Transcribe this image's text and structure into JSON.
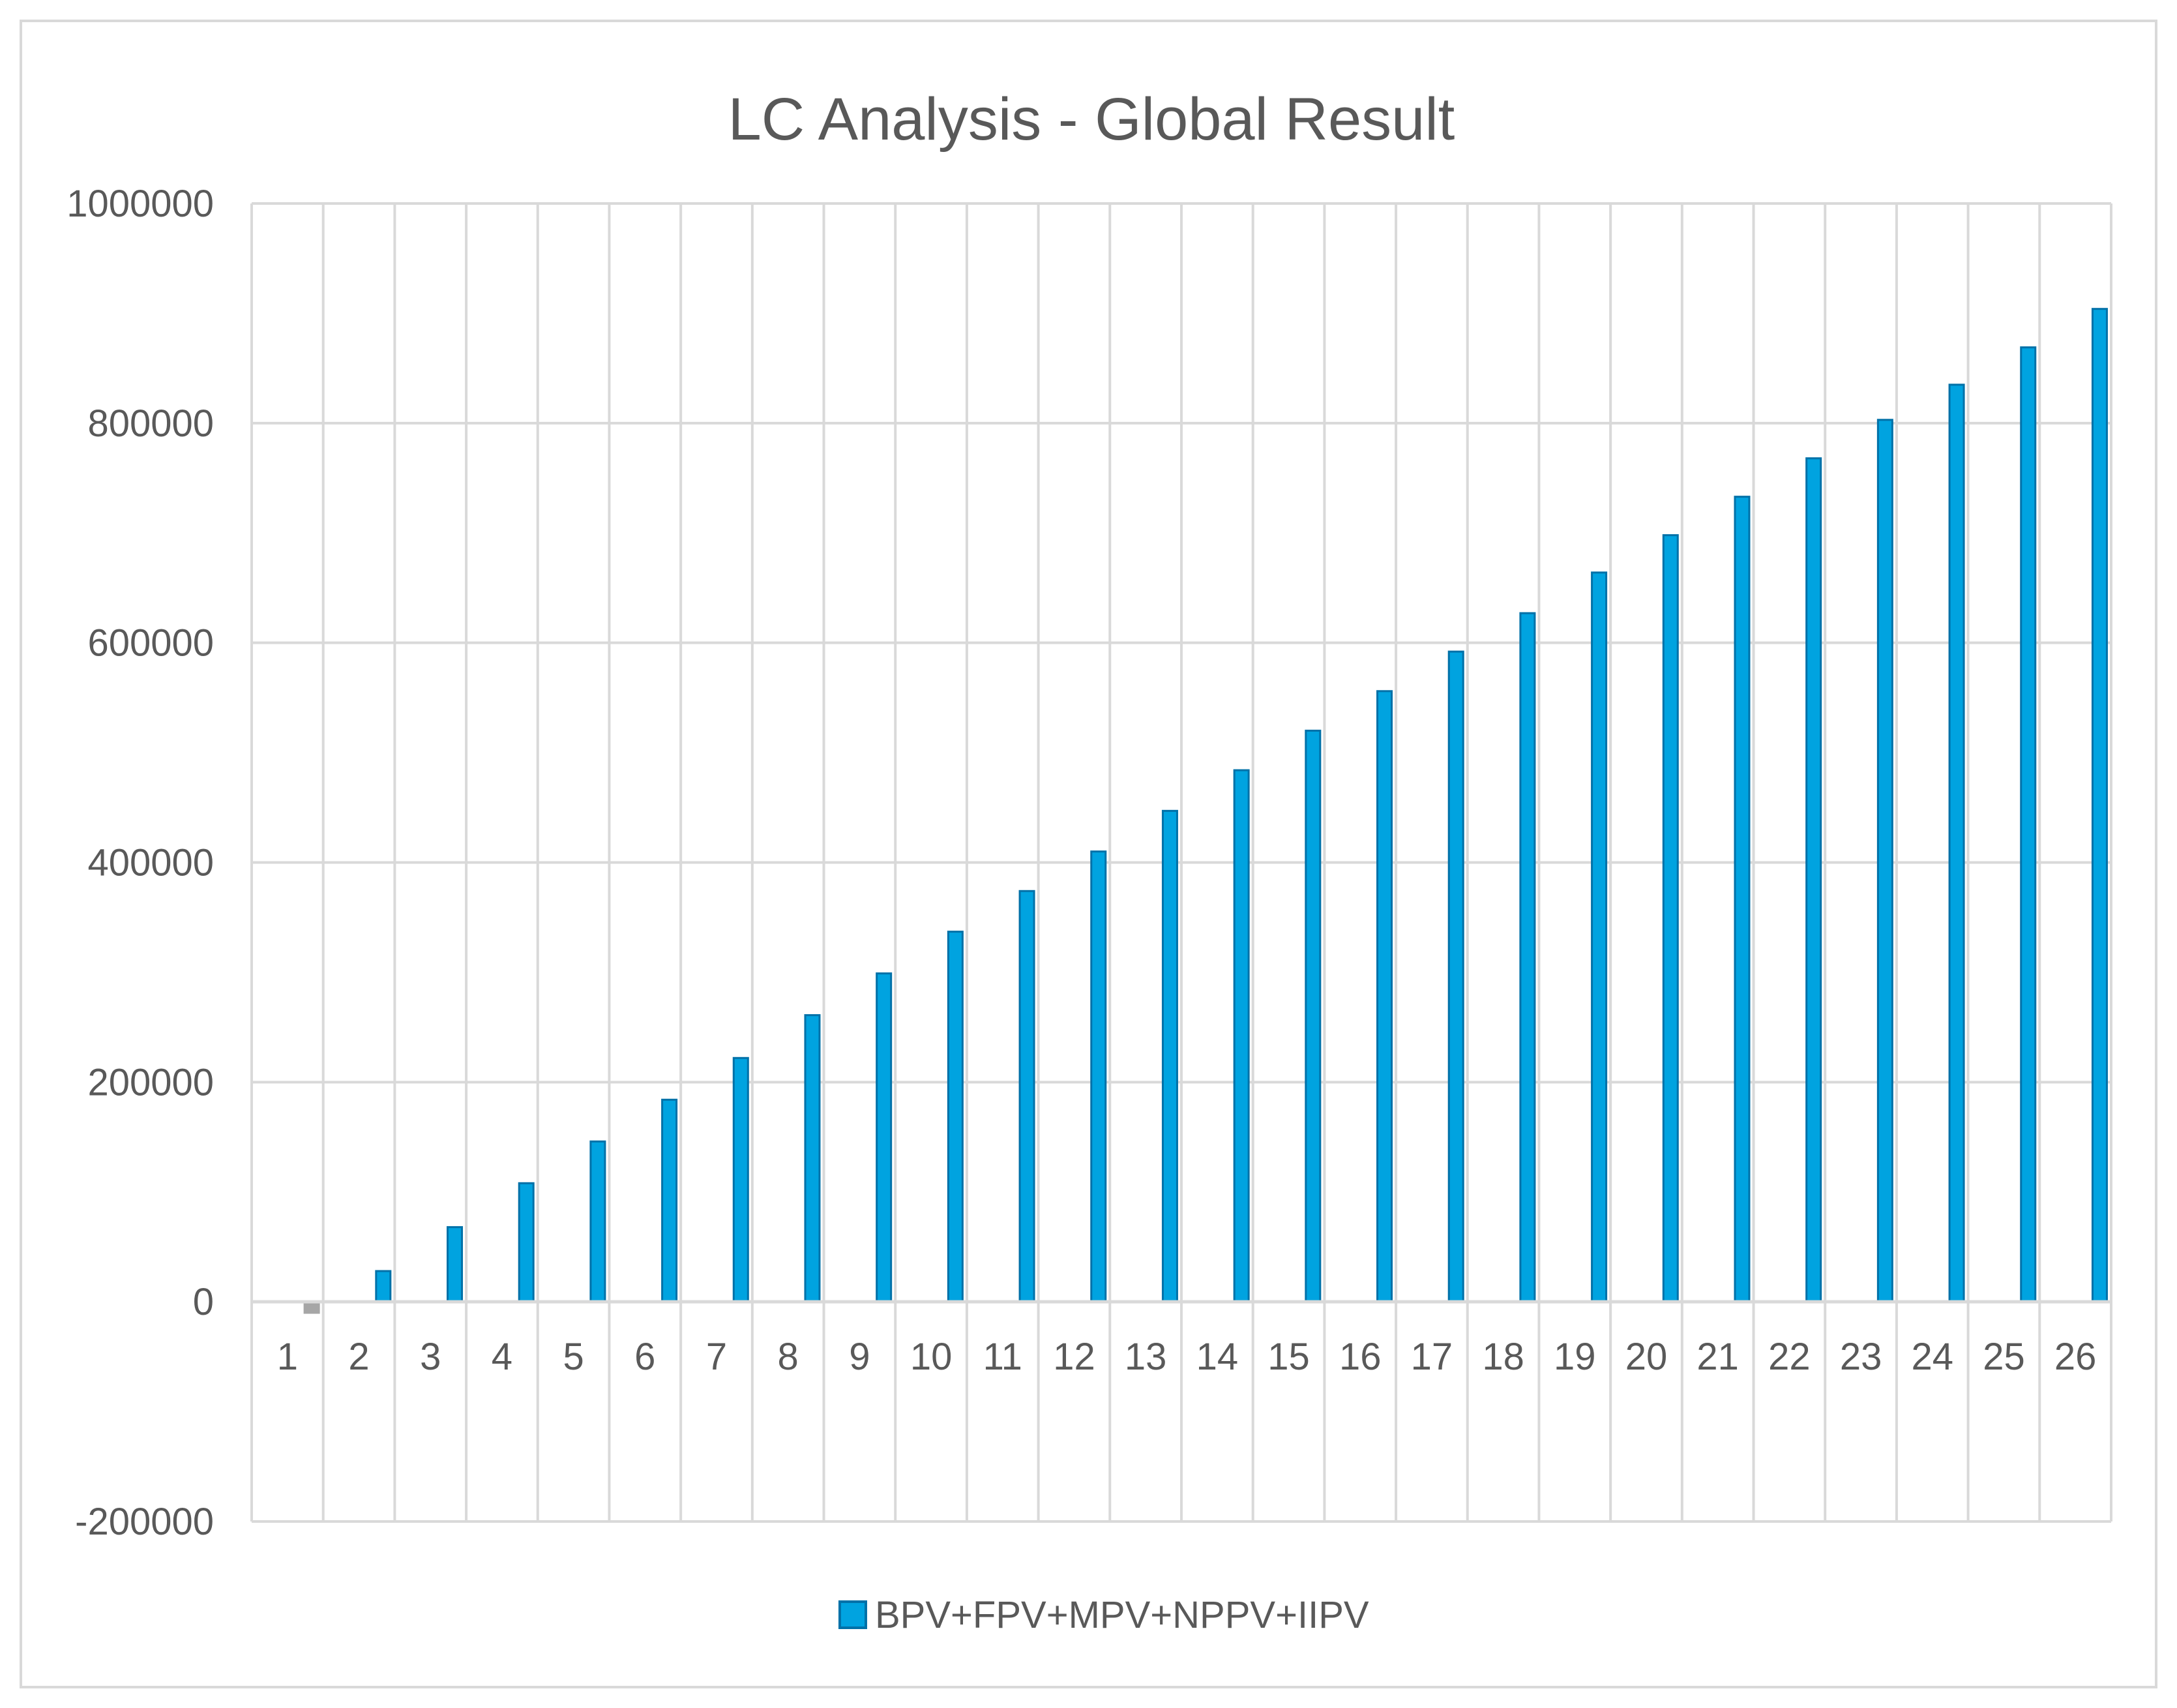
{
  "chart_data": {
    "type": "bar",
    "title": "LC Analysis - Global Result",
    "xlabel": "",
    "ylabel": "",
    "categories": [
      "1",
      "2",
      "3",
      "4",
      "5",
      "6",
      "7",
      "8",
      "9",
      "10",
      "11",
      "12",
      "13",
      "14",
      "15",
      "16",
      "17",
      "18",
      "19",
      "20",
      "21",
      "22",
      "23",
      "24",
      "25",
      "26"
    ],
    "series": [
      {
        "name": "BPV+FPV+MPV+NPPV+IIPV",
        "values": [
          -10000,
          28000,
          68000,
          108000,
          146000,
          184000,
          222000,
          261000,
          299000,
          337000,
          374000,
          410000,
          447000,
          484000,
          520000,
          556000,
          592000,
          627000,
          664000,
          698000,
          733000,
          768000,
          803000,
          835000,
          869000,
          904000
        ],
        "color": "#00a3e0",
        "border_color": "#0071a8"
      }
    ],
    "ylim": [
      -200000,
      1000000
    ],
    "yticks": [
      "-200000",
      "0",
      "200000",
      "400000",
      "600000",
      "800000",
      "1000000"
    ],
    "ytick_values": [
      -200000,
      0,
      200000,
      400000,
      600000,
      800000,
      1000000
    ],
    "negative_bar_color": "#a6a6a6",
    "grid": true,
    "legend_position": "bottom"
  }
}
